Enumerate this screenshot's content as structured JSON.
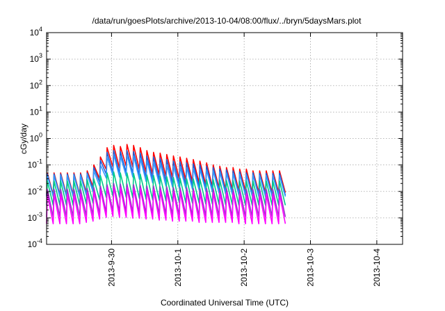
{
  "chart_data": {
    "type": "line",
    "title": "/data/run/goesPlots/archive/2013-10-04/08:00/flux/../bryn/5daysMars.plot",
    "xlabel": "Coordinated Universal Time (UTC)",
    "ylabel": "cGy/day",
    "yscale": "log",
    "ylim": [
      0.0001,
      10000
    ],
    "xlim": [
      "2013-09-29T00:30",
      "2013-10-04T09:20"
    ],
    "y_ticks": [
      {
        "value": 0.0001,
        "base": "10",
        "exp": "-4"
      },
      {
        "value": 0.001,
        "base": "10",
        "exp": "-3"
      },
      {
        "value": 0.01,
        "base": "10",
        "exp": "-2"
      },
      {
        "value": 0.1,
        "base": "10",
        "exp": "-1"
      },
      {
        "value": 1,
        "base": "10",
        "exp": "0"
      },
      {
        "value": 10,
        "base": "10",
        "exp": "1"
      },
      {
        "value": 100,
        "base": "10",
        "exp": "2"
      },
      {
        "value": 1000,
        "base": "10",
        "exp": "3"
      },
      {
        "value": 10000,
        "base": "10",
        "exp": "4"
      }
    ],
    "x_ticks": [
      {
        "value": "2013-09-30T00:00",
        "label": "2013-9-30"
      },
      {
        "value": "2013-10-01T00:00",
        "label": "2013-10-1"
      },
      {
        "value": "2013-10-02T00:00",
        "label": "2013-10-2"
      },
      {
        "value": "2013-10-03T00:00",
        "label": "2013-10-3"
      },
      {
        "value": "2013-10-04T00:00",
        "label": "2013-10-4"
      }
    ],
    "grid": true,
    "sawtooth_period_hours": 2.4,
    "series": [
      {
        "color": "#ff0000",
        "peaks": [
          0.05,
          0.05,
          0.05,
          0.05,
          0.05,
          0.05,
          0.06,
          0.1,
          0.2,
          0.45,
          0.55,
          0.5,
          0.6,
          0.55,
          0.45,
          0.35,
          0.3,
          0.28,
          0.25,
          0.22,
          0.2,
          0.18,
          0.16,
          0.14,
          0.12,
          0.1,
          0.09,
          0.08,
          0.08,
          0.07,
          0.07,
          0.06,
          0.06,
          0.06,
          0.06,
          0.06
        ],
        "trough_ratio": 0.15
      },
      {
        "color": "#1f5fd6",
        "peaks": [
          0.045,
          0.045,
          0.045,
          0.045,
          0.045,
          0.045,
          0.05,
          0.08,
          0.15,
          0.3,
          0.35,
          0.32,
          0.35,
          0.32,
          0.28,
          0.22,
          0.2,
          0.18,
          0.16,
          0.14,
          0.13,
          0.12,
          0.11,
          0.1,
          0.09,
          0.08,
          0.07,
          0.065,
          0.06,
          0.055,
          0.05,
          0.05,
          0.048,
          0.048,
          0.048,
          0.048
        ],
        "trough_ratio": 0.15
      },
      {
        "color": "#3399ff",
        "peaks": [
          0.04,
          0.04,
          0.04,
          0.04,
          0.04,
          0.04,
          0.045,
          0.06,
          0.1,
          0.2,
          0.25,
          0.22,
          0.24,
          0.22,
          0.18,
          0.15,
          0.13,
          0.12,
          0.1,
          0.09,
          0.085,
          0.08,
          0.075,
          0.07,
          0.065,
          0.06,
          0.055,
          0.05,
          0.048,
          0.045,
          0.043,
          0.042,
          0.04,
          0.04,
          0.04,
          0.04
        ],
        "trough_ratio": 0.16
      },
      {
        "color": "#00cc88",
        "peaks": [
          0.025,
          0.025,
          0.025,
          0.025,
          0.025,
          0.025,
          0.028,
          0.03,
          0.04,
          0.05,
          0.055,
          0.05,
          0.05,
          0.048,
          0.045,
          0.042,
          0.04,
          0.038,
          0.036,
          0.034,
          0.032,
          0.03,
          0.03,
          0.03,
          0.028,
          0.028,
          0.027,
          0.026,
          0.026,
          0.025,
          0.025,
          0.025,
          0.025,
          0.025,
          0.025,
          0.025
        ],
        "trough_ratio": 0.12
      },
      {
        "color": "#9933cc",
        "peaks": [
          0.012,
          0.012,
          0.012,
          0.012,
          0.012,
          0.012,
          0.013,
          0.014,
          0.016,
          0.018,
          0.02,
          0.019,
          0.019,
          0.018,
          0.017,
          0.016,
          0.016,
          0.015,
          0.015,
          0.014,
          0.014,
          0.014,
          0.013,
          0.013,
          0.013,
          0.013,
          0.013,
          0.013,
          0.012,
          0.012,
          0.012,
          0.012,
          0.012,
          0.012,
          0.012,
          0.012
        ],
        "trough_ratio": 0.09
      },
      {
        "color": "#ff00ff",
        "peaks": [
          0.008,
          0.008,
          0.008,
          0.008,
          0.008,
          0.008,
          0.009,
          0.01,
          0.012,
          0.014,
          0.015,
          0.014,
          0.014,
          0.013,
          0.013,
          0.012,
          0.012,
          0.011,
          0.011,
          0.01,
          0.01,
          0.01,
          0.01,
          0.009,
          0.009,
          0.009,
          0.009,
          0.009,
          0.009,
          0.008,
          0.008,
          0.008,
          0.008,
          0.008,
          0.008,
          0.008
        ],
        "trough_ratio": 0.075
      }
    ]
  }
}
